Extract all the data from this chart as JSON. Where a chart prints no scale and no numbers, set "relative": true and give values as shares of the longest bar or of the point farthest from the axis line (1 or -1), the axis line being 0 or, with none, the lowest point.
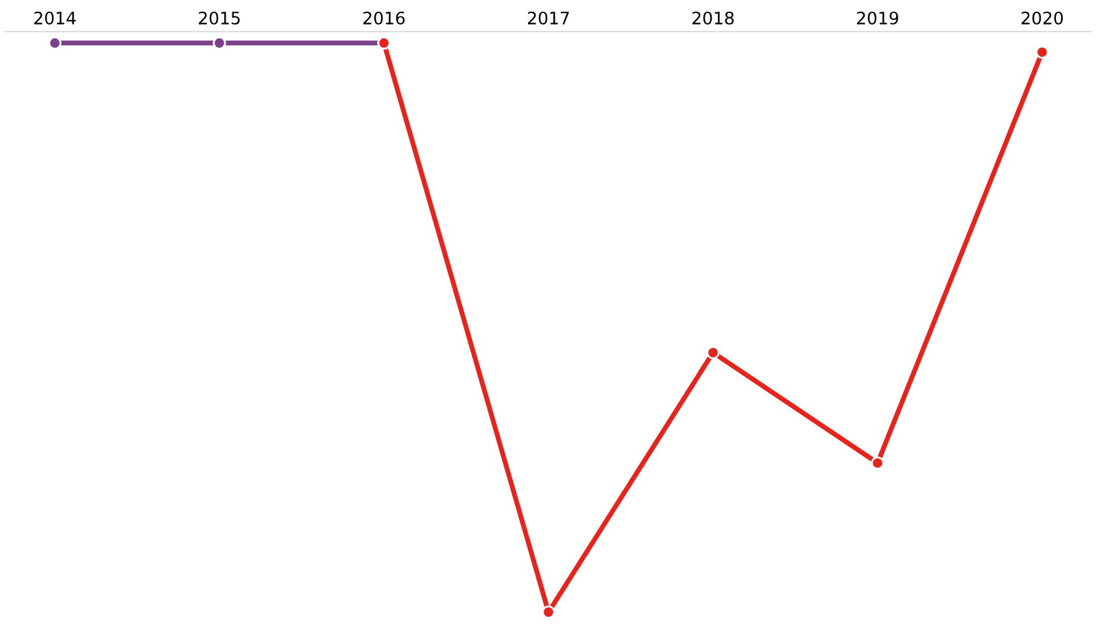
{
  "chart_data": {
    "type": "line",
    "relative": true,
    "categories": [
      "2014",
      "2015",
      "2016",
      "2017",
      "2018",
      "2019",
      "2020"
    ],
    "series": [
      {
        "color": "#7b3f8c",
        "values": [
          1,
          1,
          1,
          null,
          null,
          null,
          null
        ]
      },
      {
        "color": "#e8231c",
        "values": [
          null,
          null,
          1,
          0,
          0.456,
          0.262,
          0.984
        ]
      }
    ],
    "marker": "circle",
    "line_style": "solid",
    "legend": false,
    "tick_labels": "x"
  }
}
